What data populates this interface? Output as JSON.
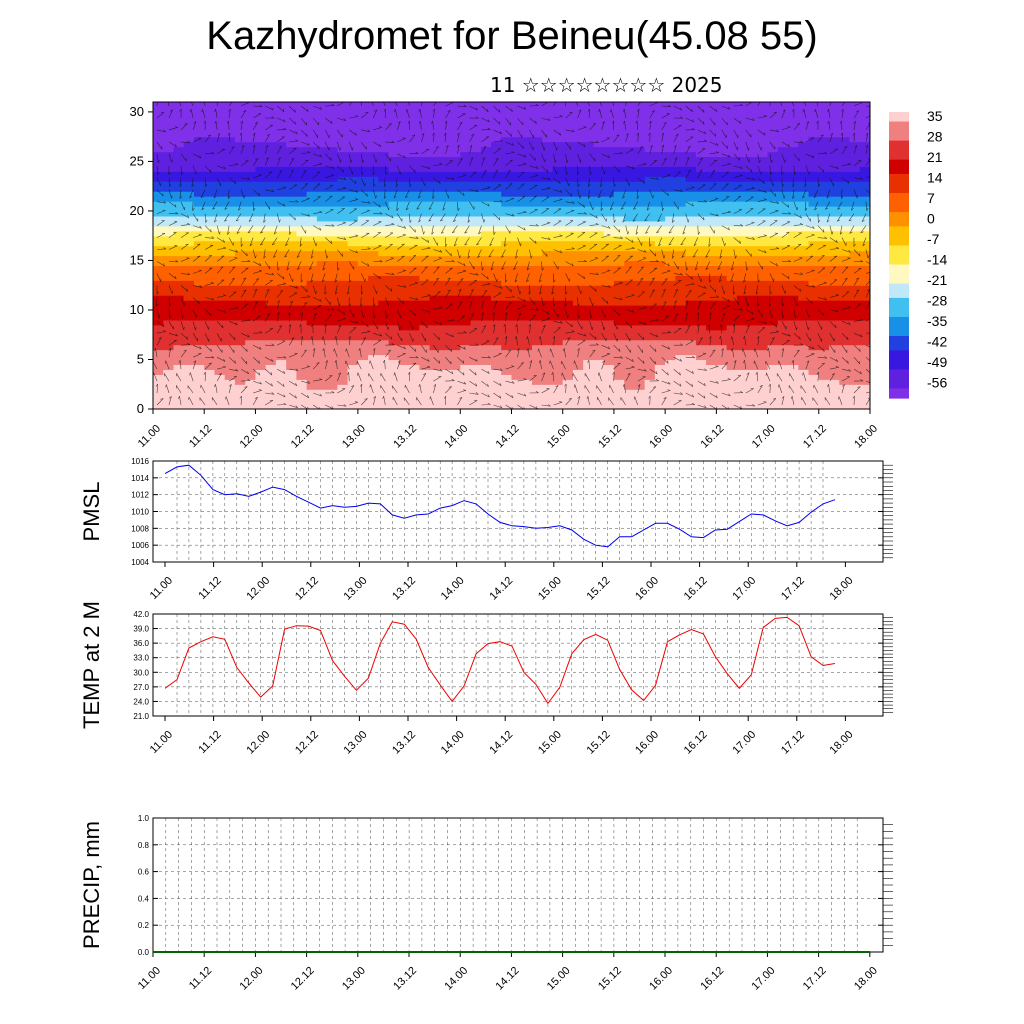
{
  "title": "Kazhydromet for Beineu(45.08 55)",
  "subtitle": "11 ☆☆☆☆☆☆☆☆ 2025",
  "colors": {
    "pmsl_line": "#0000ee",
    "temp_line": "#ee0000",
    "precip_line": "#006400",
    "grid": "#000000",
    "colormap": [
      "#ffd0d0",
      "#f08080",
      "#e03030",
      "#d00000",
      "#e83000",
      "#ff6000",
      "#ff9000",
      "#ffc000",
      "#ffe840",
      "#fff8c0",
      "#c0e8f8",
      "#40c0f0",
      "#1890e8",
      "#2040e0",
      "#3818e0",
      "#6020e0",
      "#8030e8"
    ]
  },
  "chart_data": [
    {
      "type": "heatmap",
      "name": "vertical cross-section with wind vectors",
      "x_ticks": [
        "11.00",
        "11.12",
        "12.00",
        "12.12",
        "13.00",
        "13.12",
        "14.00",
        "14.12",
        "15.00",
        "15.12",
        "16.00",
        "16.12",
        "17.00",
        "17.12",
        "18.00"
      ],
      "y_ticks": [
        "0",
        "5",
        "10",
        "15",
        "20",
        "25",
        "30"
      ],
      "ylim": [
        0,
        31
      ],
      "colorbar_labels": [
        "35",
        "28",
        "21",
        "14",
        "7",
        "0",
        "-7",
        "-14",
        "-21",
        "-28",
        "-35",
        "-42",
        "-49",
        "-56"
      ],
      "vertical_profile": [
        [
          0,
          35
        ],
        [
          5,
          30
        ],
        [
          8,
          22
        ],
        [
          11,
          14
        ],
        [
          14,
          5
        ],
        [
          16,
          -5
        ],
        [
          17.5,
          -14
        ],
        [
          19,
          -25
        ],
        [
          21,
          -35
        ],
        [
          23,
          -45
        ],
        [
          25,
          -55
        ],
        [
          27,
          -58
        ],
        [
          31,
          -60
        ]
      ],
      "diurnal_warm_centers": [
        0.4,
        1.2,
        2.2,
        3.2,
        4.3,
        5.2,
        6.2
      ],
      "wind_vectors": true
    },
    {
      "type": "line",
      "name": "PMSL",
      "ylabel": "PMSL",
      "x_ticks": [
        "11.00",
        "11.12",
        "12.00",
        "12.12",
        "13.00",
        "13.12",
        "14.00",
        "14.12",
        "15.00",
        "15.12",
        "16.00",
        "16.12",
        "17.00",
        "17.12",
        "18.00"
      ],
      "y_ticks": [
        "1004",
        "1006",
        "1008",
        "1010",
        "1012",
        "1014",
        "1016"
      ],
      "ylim": [
        1004,
        1016
      ],
      "step_hours": 3,
      "values": [
        1014.5,
        1015.3,
        1015.5,
        1014.3,
        1012.6,
        1012.0,
        1012.1,
        1011.8,
        1012.3,
        1012.9,
        1012.6,
        1011.8,
        1011.1,
        1010.4,
        1010.7,
        1010.5,
        1010.6,
        1011.0,
        1010.9,
        1009.6,
        1009.2,
        1009.6,
        1009.7,
        1010.4,
        1010.7,
        1011.3,
        1010.9,
        1009.7,
        1008.7,
        1008.3,
        1008.2,
        1008.0,
        1008.1,
        1008.3,
        1007.8,
        1006.7,
        1006.0,
        1005.8,
        1007.0,
        1007.0,
        1007.8,
        1008.6,
        1008.6,
        1007.9,
        1007.0,
        1006.9,
        1007.8,
        1007.9,
        1008.8,
        1009.7,
        1009.6,
        1008.9,
        1008.3,
        1008.7,
        1009.9,
        1010.9,
        1011.4
      ]
    },
    {
      "type": "line",
      "name": "TEMP at 2 M",
      "ylabel": "TEMP at 2 M",
      "x_ticks": [
        "11.00",
        "11.12",
        "12.00",
        "12.12",
        "13.00",
        "13.12",
        "14.00",
        "14.12",
        "15.00",
        "15.12",
        "16.00",
        "16.12",
        "17.00",
        "17.12",
        "18.00"
      ],
      "y_ticks": [
        "21.0",
        "24.0",
        "27.0",
        "30.0",
        "33.0",
        "36.0",
        "39.0",
        "42.0"
      ],
      "ylim": [
        21,
        42
      ],
      "step_hours": 3,
      "values": [
        26.7,
        28.5,
        35.0,
        36.3,
        37.3,
        36.8,
        31.0,
        27.8,
        24.9,
        27.2,
        38.9,
        39.6,
        39.5,
        38.6,
        32.4,
        29.2,
        26.3,
        28.8,
        36.0,
        40.4,
        39.9,
        36.8,
        31.0,
        27.4,
        24.0,
        27.2,
        33.8,
        35.9,
        36.3,
        35.4,
        30.0,
        27.5,
        23.6,
        26.9,
        33.8,
        36.7,
        37.8,
        36.6,
        30.6,
        26.4,
        24.2,
        27.3,
        36.3,
        37.7,
        38.8,
        37.9,
        33.2,
        29.7,
        26.7,
        29.5,
        39.2,
        41.1,
        41.3,
        39.6,
        33.2,
        31.4,
        31.8
      ]
    },
    {
      "type": "line",
      "name": "PRECIP, mm",
      "ylabel": "PRECIP, mm",
      "x_ticks": [
        "11.00",
        "11.12",
        "12.00",
        "12.12",
        "13.00",
        "13.12",
        "14.00",
        "14.12",
        "15.00",
        "15.12",
        "16.00",
        "16.12",
        "17.00",
        "17.12",
        "18.00"
      ],
      "y_ticks": [
        "0.0",
        "0.2",
        "0.4",
        "0.6",
        "0.8",
        "1.0"
      ],
      "ylim": [
        0,
        1
      ],
      "step_hours": 3,
      "values": [
        0,
        0,
        0,
        0,
        0,
        0,
        0,
        0,
        0,
        0,
        0,
        0,
        0,
        0,
        0,
        0,
        0,
        0,
        0,
        0,
        0,
        0,
        0,
        0,
        0,
        0,
        0,
        0,
        0,
        0,
        0,
        0,
        0,
        0,
        0,
        0,
        0,
        0,
        0,
        0,
        0,
        0,
        0,
        0,
        0,
        0,
        0,
        0,
        0,
        0,
        0,
        0,
        0,
        0,
        0,
        0,
        0
      ]
    }
  ]
}
